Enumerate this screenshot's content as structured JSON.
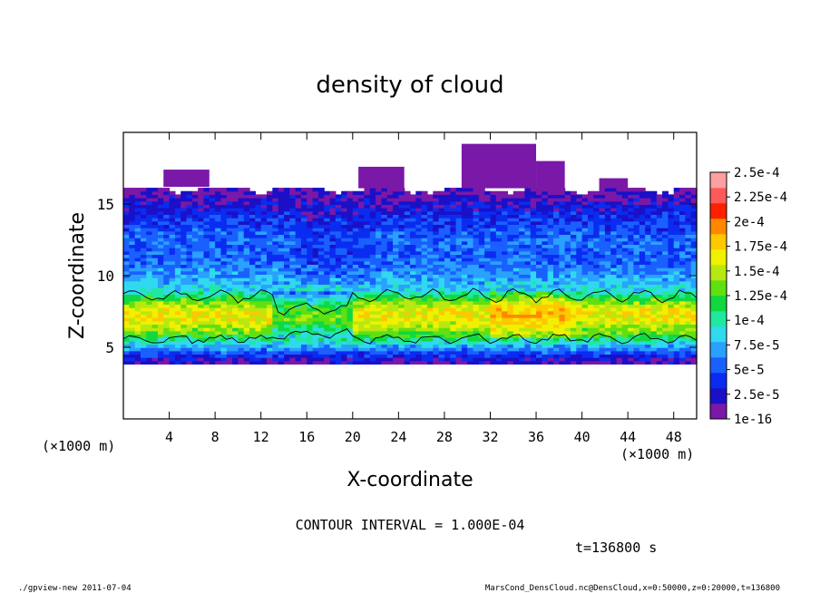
{
  "chart_data": {
    "type": "heatmap",
    "title": "density of cloud",
    "xlabel": "X-coordinate",
    "ylabel": "Z-coordinate",
    "x_unit": "(×1000 m)",
    "y_unit": "(×1000 m)",
    "xlim": [
      0,
      50
    ],
    "ylim": [
      0,
      20
    ],
    "x_ticks": [
      4,
      8,
      12,
      16,
      20,
      24,
      28,
      32,
      36,
      40,
      44,
      48
    ],
    "y_ticks": [
      5,
      10,
      15
    ],
    "colorbar_labels": [
      "1e-16",
      "2.5e-5",
      "5e-5",
      "7.5e-5",
      "1e-4",
      "1.25e-4",
      "1.5e-4",
      "1.75e-4",
      "2e-4",
      "2.25e-4",
      "2.5e-4"
    ],
    "colorbar_colors": [
      "#7a18a8",
      "#1a10c8",
      "#0a2cf0",
      "#1a60ff",
      "#2aa0ff",
      "#30d8f0",
      "#20e8a0",
      "#10d840",
      "#60e010",
      "#b8e810",
      "#f0f000",
      "#ffc800",
      "#ff8800",
      "#ff2000",
      "#ff5a5a",
      "#ffa0a0"
    ],
    "contour_interval": "CONTOUR INTERVAL = 1.000E-04",
    "time_label": "t=136800 s",
    "profile": [
      {
        "z": 3.8,
        "level": 0
      },
      {
        "z": 4.1,
        "level": 1
      },
      {
        "z": 4.5,
        "level": 2
      },
      {
        "z": 5.0,
        "level": 4
      },
      {
        "z": 5.5,
        "level": 6
      },
      {
        "z": 6.0,
        "level": 8
      },
      {
        "z": 6.5,
        "level": 9
      },
      {
        "z": 7.0,
        "level": 10
      },
      {
        "z": 7.5,
        "level": 10
      },
      {
        "z": 8.0,
        "level": 9
      },
      {
        "z": 8.5,
        "level": 7
      },
      {
        "z": 9.0,
        "level": 5
      },
      {
        "z": 10.0,
        "level": 4
      },
      {
        "z": 11.0,
        "level": 3
      },
      {
        "z": 12.5,
        "level": 3
      },
      {
        "z": 14.0,
        "level": 2
      },
      {
        "z": 15.0,
        "level": 1
      },
      {
        "z": 16.2,
        "level": 0
      }
    ]
  },
  "footer": {
    "left": "./gpview-new  2011-07-04",
    "right": "MarsCond_DensCloud.nc@DensCloud,x=0:50000,z=0:20000,t=136800"
  }
}
